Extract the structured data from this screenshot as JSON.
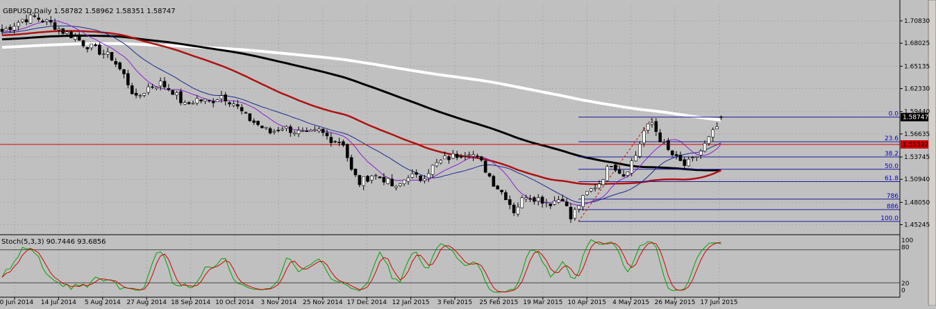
{
  "window": {
    "symbol_info": "GBPUSD,Daily  1.58782 1.58962 1.58351 1.58747"
  },
  "colors": {
    "background": "#c0c0c0",
    "grid": "#a8a8a8",
    "bull_candle": "#ffffff",
    "bear_candle": "#000000",
    "ma_fast": "#8a1fd0",
    "ma_mid": "#1a2a8a",
    "ma_50": "#b01010",
    "ma_100": "#000000",
    "ma_200": "#ffffff",
    "fib_line": "#1a1a9a",
    "fib_label": "#0000c8",
    "price_line": "#d00000",
    "stoch_main": "#00a000",
    "stoch_signal": "#d00000",
    "current_price_box": "#000000"
  },
  "chart_data": [
    {
      "type": "candlestick",
      "title": "GBPUSD,Daily  1.58782 1.58962 1.58351 1.58747",
      "ohlc_last": {
        "open": 1.58782,
        "high": 1.58962,
        "low": 1.58351,
        "close": 1.58747
      },
      "ylim": [
        1.4425,
        1.7275
      ],
      "y_ticks": [
        "1.70830",
        "1.68025",
        "1.65135",
        "1.62330",
        "1.59440",
        "1.56635",
        "1.53745",
        "1.50940",
        "1.48050",
        "1.45245"
      ],
      "x_ticks": [
        "20 Jun 2014",
        "14 Jul 2014",
        "5 Aug 2014",
        "27 Aug 2014",
        "18 Sep 2014",
        "10 Oct 2014",
        "3 Nov 2014",
        "25 Nov 2014",
        "17 Dec 2014",
        "12 Jan 2015",
        "3 Feb 2015",
        "25 Feb 2015",
        "19 Mar 2015",
        "10 Apr 2015",
        "4 May 2015",
        "26 May 2015",
        "17 Jun 2015"
      ],
      "current_price_label": "1.58747",
      "horizontal_line_label": "1.55322",
      "horizontal_line_value": 1.55322,
      "fibonacci": {
        "high": 1.5875,
        "low": 1.4565,
        "levels": [
          {
            "label": "0.0",
            "value": 1.5875
          },
          {
            "label": "23.6",
            "value": 1.5566
          },
          {
            "label": "38.2",
            "value": 1.5375
          },
          {
            "label": "50.0",
            "value": 1.522
          },
          {
            "label": "61.8",
            "value": 1.5066
          },
          {
            "label": "786",
            "value": 1.4845
          },
          {
            "label": "886",
            "value": 1.4714
          },
          {
            "label": "100.0",
            "value": 1.4565
          }
        ]
      },
      "price_anchors": [
        [
          0,
          1.695
        ],
        [
          5,
          1.71
        ],
        [
          8,
          1.713
        ],
        [
          12,
          1.705
        ],
        [
          15,
          1.695
        ],
        [
          18,
          1.688
        ],
        [
          20,
          1.68
        ],
        [
          24,
          1.67
        ],
        [
          27,
          1.662
        ],
        [
          30,
          1.64
        ],
        [
          33,
          1.61
        ],
        [
          36,
          1.625
        ],
        [
          39,
          1.63
        ],
        [
          42,
          1.62
        ],
        [
          45,
          1.602
        ],
        [
          48,
          1.61
        ],
        [
          51,
          1.606
        ],
        [
          54,
          1.615
        ],
        [
          57,
          1.605
        ],
        [
          60,
          1.588
        ],
        [
          63,
          1.578
        ],
        [
          66,
          1.568
        ],
        [
          69,
          1.575
        ],
        [
          72,
          1.57
        ],
        [
          75,
          1.565
        ],
        [
          78,
          1.57
        ],
        [
          81,
          1.56
        ],
        [
          84,
          1.555
        ],
        [
          86,
          1.52
        ],
        [
          88,
          1.505
        ],
        [
          91,
          1.515
        ],
        [
          94,
          1.51
        ],
        [
          97,
          1.497
        ],
        [
          100,
          1.515
        ],
        [
          103,
          1.51
        ],
        [
          106,
          1.525
        ],
        [
          109,
          1.535
        ],
        [
          112,
          1.54
        ],
        [
          115,
          1.545
        ],
        [
          118,
          1.53
        ],
        [
          121,
          1.505
        ],
        [
          124,
          1.488
        ],
        [
          126,
          1.47
        ],
        [
          129,
          1.49
        ],
        [
          132,
          1.485
        ],
        [
          135,
          1.48
        ],
        [
          138,
          1.487
        ],
        [
          140,
          1.46
        ],
        [
          142,
          1.478
        ],
        [
          144,
          1.492
        ],
        [
          147,
          1.505
        ],
        [
          150,
          1.53
        ],
        [
          153,
          1.515
        ],
        [
          156,
          1.54
        ],
        [
          158,
          1.57
        ],
        [
          160,
          1.58
        ],
        [
          162,
          1.56
        ],
        [
          164,
          1.545
        ],
        [
          166,
          1.535
        ],
        [
          168,
          1.527
        ],
        [
          170,
          1.533
        ],
        [
          172,
          1.545
        ],
        [
          174,
          1.56
        ],
        [
          176,
          1.575
        ],
        [
          177,
          1.586
        ]
      ]
    },
    {
      "type": "line",
      "title": "Stoch(5,3,3) 90.7446 93.6856",
      "series": [
        {
          "name": "Stoch main",
          "last_value": 90.7446
        },
        {
          "name": "Stoch signal",
          "last_value": 93.6856
        }
      ],
      "ylim": [
        0,
        100
      ],
      "y_ticks": [
        "100",
        "80",
        "20",
        "0"
      ],
      "levels": [
        80,
        20
      ]
    }
  ],
  "stoch_panel": {
    "label": "Stoch(5,3,3) 90.7446 93.6856",
    "axis": {
      "top": "100",
      "upper": "80",
      "lower": "20",
      "bottom": "0"
    }
  }
}
